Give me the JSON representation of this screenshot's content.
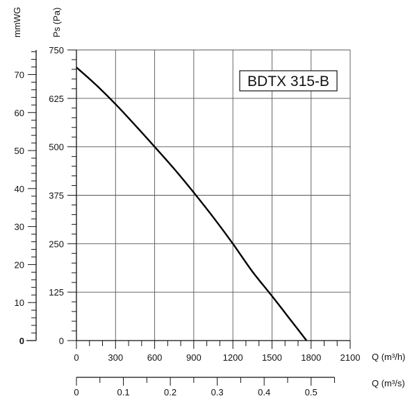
{
  "chart_data": {
    "type": "line",
    "title": "BDTX 315-B",
    "x_flow_m3h": {
      "label": "Q (m³/h)",
      "range": [
        0,
        2100
      ],
      "ticks": [
        0,
        300,
        600,
        900,
        1200,
        1500,
        1800,
        2100
      ],
      "tick_labels": [
        "0",
        "300",
        "600",
        "900",
        "1200",
        "1500",
        "1800",
        "2100"
      ]
    },
    "x_flow_m3s": {
      "label": "Q (m³/s)",
      "ticks": [
        0,
        0.1,
        0.2,
        0.3,
        0.4,
        0.5
      ],
      "tick_labels": [
        "0",
        "0.1",
        "0.2",
        "0.3",
        "0.4",
        "0.5"
      ]
    },
    "y_pressure_pa": {
      "label": "Ps (Pa)",
      "range": [
        0,
        750
      ],
      "ticks": [
        0,
        125,
        250,
        375,
        500,
        625,
        750
      ],
      "tick_labels": [
        "0",
        "125",
        "250",
        "375",
        "500",
        "625",
        "750"
      ]
    },
    "y_mmwg": {
      "label": "mmWG",
      "ticks": [
        0,
        10,
        20,
        30,
        40,
        50,
        60,
        70
      ],
      "tick_labels": [
        "0",
        "10",
        "20",
        "30",
        "40",
        "50",
        "60",
        "70"
      ]
    },
    "grid": true,
    "series": [
      {
        "x": [
          0,
          150,
          300,
          450,
          600,
          750,
          900,
          1050,
          1200,
          1350,
          1500,
          1650,
          1765
        ],
        "y": [
          705,
          660,
          610,
          556,
          500,
          443,
          382,
          318,
          250,
          178,
          115,
          50,
          0
        ]
      }
    ]
  }
}
